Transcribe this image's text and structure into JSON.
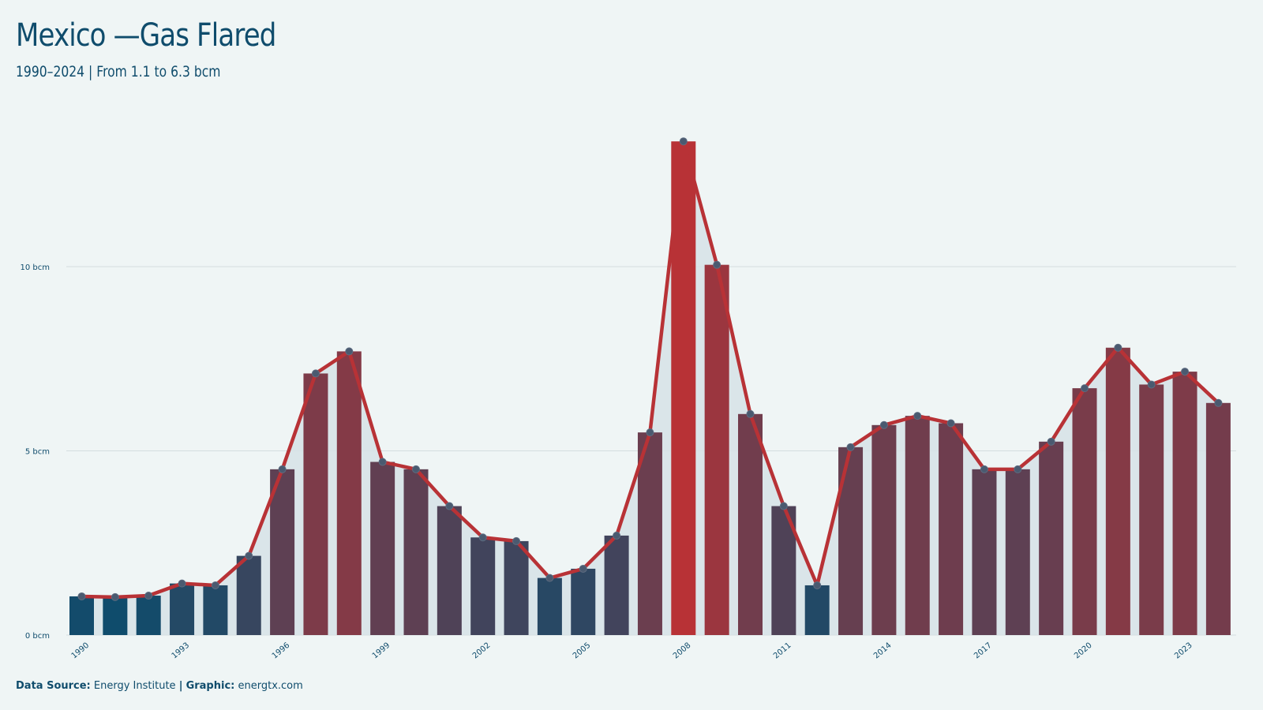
{
  "header": {
    "title": "Mexico —Gas Flared",
    "subtitle": "1990–2024 | From 1.1 to 6.3 bcm"
  },
  "footer": {
    "source_label": "Data Source:",
    "source_value": "Energy Institute",
    "separator": "|",
    "graphic_label": "Graphic:",
    "graphic_value": "energtx.com"
  },
  "colors": {
    "background": "#eff5f5",
    "text": "#0f4c6c",
    "bar_low": "#0f4c6c",
    "bar_high": "#b83236",
    "line": "#b83236",
    "marker": "#4a5a70",
    "area": "#d6e2e6",
    "grid": "#d4dddf"
  },
  "chart_data": {
    "type": "bar",
    "title": "Mexico —Gas Flared",
    "subtitle": "1990–2024 | From 1.1 to 6.3 bcm",
    "xlabel": "",
    "ylabel": "",
    "x": [
      1990,
      1991,
      1992,
      1993,
      1994,
      1995,
      1996,
      1997,
      1998,
      1999,
      2000,
      2001,
      2002,
      2003,
      2004,
      2005,
      2006,
      2007,
      2008,
      2009,
      2010,
      2011,
      2012,
      2013,
      2014,
      2015,
      2016,
      2017,
      2018,
      2019,
      2020,
      2021,
      2022,
      2023,
      2024
    ],
    "values": [
      1.05,
      1.03,
      1.07,
      1.4,
      1.35,
      2.15,
      4.5,
      7.1,
      7.7,
      4.7,
      4.5,
      3.5,
      2.65,
      2.55,
      1.55,
      1.8,
      2.7,
      5.5,
      13.4,
      10.05,
      6.0,
      3.5,
      1.35,
      5.1,
      5.7,
      5.95,
      5.75,
      4.5,
      4.5,
      5.25,
      6.7,
      7.8,
      6.8,
      7.15,
      6.3
    ],
    "series": [
      {
        "type": "bar",
        "values_ref": "values"
      },
      {
        "type": "line",
        "values_ref": "values"
      }
    ],
    "ylim": [
      0,
      14
    ],
    "yticks": [
      {
        "value": 0,
        "label": "0 bcm"
      },
      {
        "value": 5,
        "label": "5 bcm"
      },
      {
        "value": 10,
        "label": "10 bcm"
      }
    ],
    "xtick_labels": [
      "1990",
      "1993",
      "1996",
      "1999",
      "2002",
      "2005",
      "2008",
      "2011",
      "2014",
      "2017",
      "2020",
      "2023"
    ],
    "grid": true,
    "legend": "none"
  }
}
